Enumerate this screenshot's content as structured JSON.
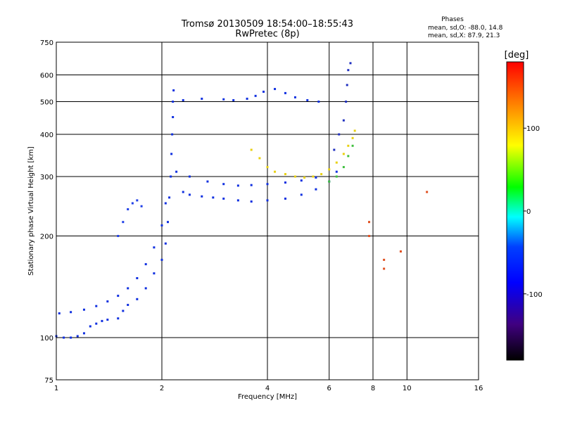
{
  "chart_data": {
    "type": "scatter",
    "title": "Tromsø 20130509 18:54:00–18:55:43",
    "subtitle": "RwPretec (8p)",
    "xlabel": "Frequency [MHz]",
    "ylabel": "Stationary phase Virtual Height [km]",
    "x_scale": "log",
    "y_scale": "log",
    "xlim": [
      1,
      16
    ],
    "ylim": [
      75,
      750
    ],
    "x_ticks": [
      1,
      2,
      4,
      6,
      8,
      10,
      16
    ],
    "y_ticks": [
      75,
      100,
      200,
      300,
      400,
      500,
      600,
      750
    ],
    "grid": true,
    "stats": {
      "heading": "Phases",
      "line_o": "mean, sd,O: -88.0, 14.8",
      "line_x": "mean, sd,X:  87.9, 21.3"
    },
    "colorbar": {
      "label": "[deg]",
      "range": [
        -180,
        180
      ],
      "ticks": [
        100,
        0,
        -100
      ],
      "colors": [
        "#ff0000",
        "#ff8000",
        "#ffff00",
        "#00ff00",
        "#00ffff",
        "#0040ff",
        "#0000ff",
        "#400080",
        "#000000"
      ]
    },
    "series": [
      {
        "color": "#1030e0",
        "points": [
          [
            1.0,
            101
          ],
          [
            1.05,
            100
          ],
          [
            1.1,
            100
          ],
          [
            1.15,
            101
          ],
          [
            1.2,
            103
          ],
          [
            1.25,
            108
          ],
          [
            1.3,
            110
          ],
          [
            1.35,
            112
          ],
          [
            1.4,
            113
          ],
          [
            1.5,
            114
          ],
          [
            1.55,
            120
          ],
          [
            1.6,
            125
          ],
          [
            1.7,
            130
          ],
          [
            1.8,
            140
          ],
          [
            1.9,
            155
          ],
          [
            2.0,
            170
          ],
          [
            2.05,
            190
          ],
          [
            2.08,
            220
          ],
          [
            2.1,
            260
          ],
          [
            2.12,
            300
          ],
          [
            2.13,
            350
          ],
          [
            2.14,
            400
          ],
          [
            2.15,
            450
          ],
          [
            2.15,
            500
          ],
          [
            2.16,
            540
          ]
        ]
      },
      {
        "color": "#1030e0",
        "points": [
          [
            1.02,
            118
          ],
          [
            1.1,
            119
          ],
          [
            1.2,
            121
          ],
          [
            1.3,
            124
          ],
          [
            1.4,
            128
          ],
          [
            1.5,
            133
          ],
          [
            1.6,
            140
          ],
          [
            1.7,
            150
          ],
          [
            1.8,
            165
          ],
          [
            1.9,
            185
          ],
          [
            2.0,
            215
          ],
          [
            2.05,
            250
          ]
        ]
      },
      {
        "color": "#2040e8",
        "points": [
          [
            1.5,
            200
          ],
          [
            1.55,
            220
          ],
          [
            1.6,
            240
          ],
          [
            1.65,
            250
          ],
          [
            1.7,
            255
          ],
          [
            1.75,
            245
          ]
        ]
      },
      {
        "color": "#1030e0",
        "points": [
          [
            2.3,
            270
          ],
          [
            2.4,
            265
          ],
          [
            2.6,
            262
          ],
          [
            2.8,
            260
          ],
          [
            3.0,
            258
          ],
          [
            3.3,
            255
          ],
          [
            3.6,
            253
          ],
          [
            4.0,
            255
          ],
          [
            4.5,
            258
          ],
          [
            5.0,
            265
          ],
          [
            5.5,
            275
          ],
          [
            6.0,
            290
          ],
          [
            6.3,
            310
          ]
        ]
      },
      {
        "color": "#1030e0",
        "points": [
          [
            2.2,
            310
          ],
          [
            2.4,
            300
          ],
          [
            2.7,
            290
          ],
          [
            3.0,
            285
          ],
          [
            3.3,
            282
          ],
          [
            3.6,
            283
          ],
          [
            4.0,
            285
          ],
          [
            4.5,
            288
          ],
          [
            5.0,
            292
          ],
          [
            5.5,
            298
          ]
        ]
      },
      {
        "color": "#1030e0",
        "points": [
          [
            2.3,
            505
          ],
          [
            2.6,
            510
          ],
          [
            3.0,
            508
          ],
          [
            3.2,
            505
          ],
          [
            3.5,
            510
          ],
          [
            3.7,
            520
          ],
          [
            3.9,
            535
          ],
          [
            4.2,
            545
          ],
          [
            4.5,
            530
          ],
          [
            4.8,
            515
          ],
          [
            5.2,
            505
          ],
          [
            5.6,
            500
          ]
        ]
      },
      {
        "color": "#e8d010",
        "points": [
          [
            3.6,
            360
          ],
          [
            3.8,
            340
          ],
          [
            4.0,
            320
          ],
          [
            4.2,
            310
          ],
          [
            4.5,
            305
          ],
          [
            4.8,
            300
          ],
          [
            5.1,
            298
          ],
          [
            5.4,
            300
          ],
          [
            5.7,
            305
          ],
          [
            6.0,
            315
          ],
          [
            6.3,
            330
          ],
          [
            6.6,
            350
          ],
          [
            6.8,
            370
          ],
          [
            7.0,
            390
          ],
          [
            7.1,
            410
          ]
        ]
      },
      {
        "color": "#40c040",
        "points": [
          [
            6.0,
            290
          ],
          [
            6.3,
            300
          ],
          [
            6.6,
            320
          ],
          [
            6.8,
            345
          ],
          [
            7.0,
            370
          ]
        ]
      },
      {
        "color": "#2030c0",
        "points": [
          [
            6.2,
            360
          ],
          [
            6.4,
            400
          ],
          [
            6.6,
            440
          ],
          [
            6.7,
            500
          ],
          [
            6.75,
            560
          ],
          [
            6.8,
            620
          ],
          [
            6.9,
            650
          ]
        ]
      },
      {
        "color": "#e05020",
        "points": [
          [
            7.8,
            200
          ],
          [
            7.8,
            220
          ],
          [
            8.6,
            160
          ],
          [
            8.6,
            170
          ],
          [
            9.6,
            180
          ],
          [
            11.4,
            270
          ]
        ]
      }
    ]
  }
}
